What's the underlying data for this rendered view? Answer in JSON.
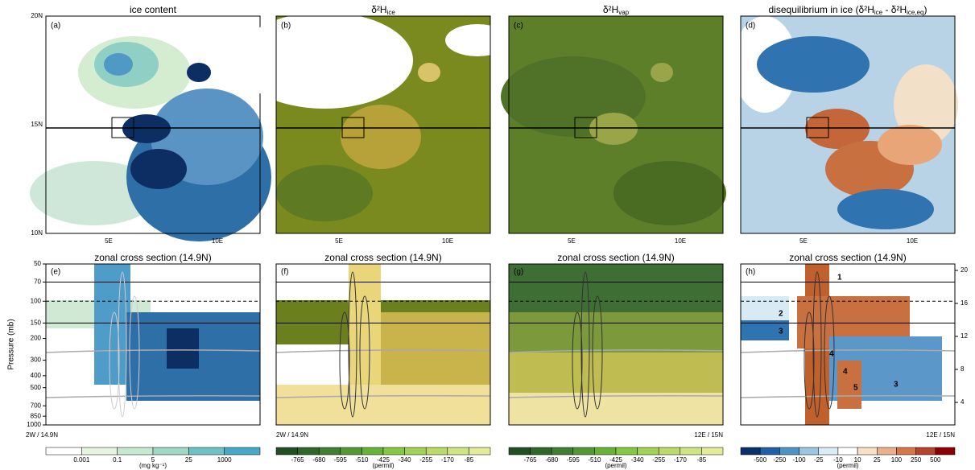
{
  "panels": [
    {
      "label": "(a)",
      "title": [
        "ice content"
      ],
      "section_label": "(e)",
      "section_title": "zonal cross section (14.9N)"
    },
    {
      "label": "(b)",
      "title": [
        "δ²H",
        "ice"
      ],
      "section_label": "(f)",
      "section_title": "zonal cross section (14.9N)"
    },
    {
      "label": "(c)",
      "title": [
        "δ²H",
        "vap"
      ],
      "section_label": "(g)",
      "section_title": "zonal cross section (14.9N)"
    },
    {
      "label": "(d)",
      "title": [
        "disequilibrium in ice (δ²H",
        "ice",
        " - δ²H",
        "ice,eq",
        ")"
      ],
      "section_label": "(h)",
      "section_title": "zonal cross section (14.9N)"
    }
  ],
  "lat_labels": [
    "20N",
    "15N",
    "10N"
  ],
  "lon_labels": [
    "5E",
    "10E"
  ],
  "pressure_title": "Pressure (mb)",
  "pressure_ticks": [
    50,
    70,
    100,
    150,
    200,
    300,
    400,
    500,
    700,
    850,
    1000
  ],
  "height_ticks": [
    20,
    16,
    12,
    8,
    4
  ],
  "section_start": "2W / 14.9N",
  "section_end": "12E / 15N",
  "annotations": [
    "1",
    "2",
    "3",
    "4",
    "4",
    "5",
    "3"
  ],
  "colorbars": [
    {
      "labels": [
        "0.001",
        "0.1",
        "5",
        "25",
        "1000"
      ],
      "unit": "(mg kg⁻¹)"
    },
    {
      "labels": [
        "-765",
        "-680",
        "-595",
        "-510",
        "-425",
        "-340",
        "-255",
        "-170",
        "-85"
      ],
      "unit": "(permil)"
    },
    {
      "labels": [
        "-765",
        "-680",
        "-595",
        "-510",
        "-425",
        "-340",
        "-255",
        "-170",
        "-85"
      ],
      "unit": "(permil)"
    },
    {
      "labels": [
        "-500",
        "-250",
        "-100",
        "-25",
        "-10",
        "10",
        "25",
        "100",
        "250",
        "500"
      ],
      "unit": "(permil)"
    }
  ]
}
